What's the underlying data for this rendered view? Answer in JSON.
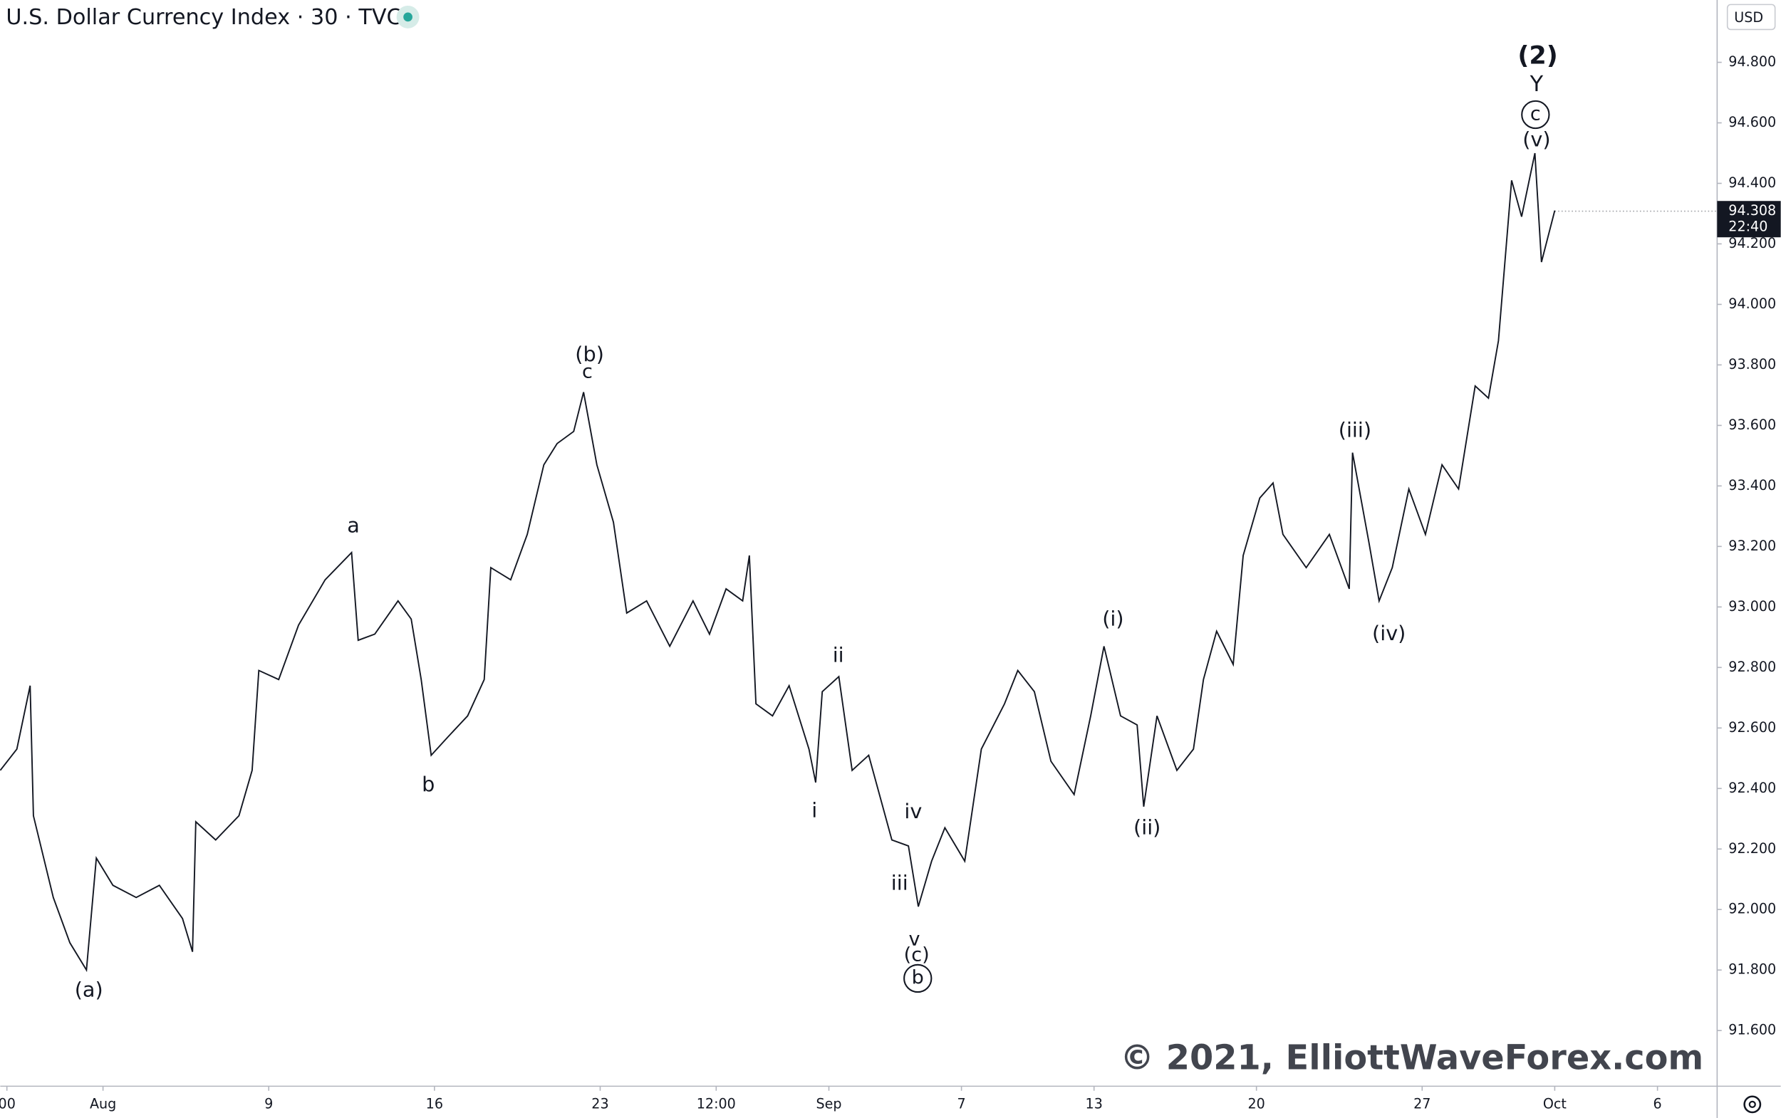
{
  "chart_data": {
    "type": "line",
    "title": "U.S. Dollar Currency Index · 30 · TVC",
    "currency": "USD",
    "watermark": "© 2021, ElliottWaveForex.com",
    "last_price": {
      "value": 94.308,
      "time": "22:40"
    },
    "color": "#131722",
    "x": [
      -3.1,
      -2.6,
      -2.2,
      -2.1,
      -1.5,
      -1.0,
      -0.5,
      -0.2,
      0.3,
      1.0,
      1.7,
      2.4,
      2.7,
      2.8,
      3.4,
      4.1,
      4.5,
      4.7,
      5.3,
      5.9,
      6.7,
      7.5,
      7.7,
      8.2,
      8.9,
      9.3,
      9.6,
      9.9,
      10.4,
      11.0,
      11.5,
      11.7,
      12.3,
      12.8,
      13.3,
      13.7,
      14.2,
      14.5,
      14.9,
      15.4,
      15.8,
      16.4,
      17.1,
      17.8,
      18.3,
      18.8,
      19.3,
      19.5,
      19.7,
      20.2,
      20.7,
      21.3,
      21.5,
      21.7,
      22.2,
      22.6,
      23.1,
      23.8,
      24.3,
      24.6,
      25.0,
      25.4,
      26.0,
      26.5,
      27.2,
      27.6,
      28.1,
      28.6,
      29.3,
      29.8,
      30.2,
      30.7,
      31.2,
      31.4,
      31.8,
      32.4,
      32.9,
      33.2,
      33.6,
      34.1,
      34.4,
      34.9,
      35.3,
      35.6,
      36.3,
      37.0,
      37.6,
      37.7,
      38.2,
      38.5,
      38.9,
      39.4,
      39.9,
      40.4,
      40.9,
      41.4,
      41.8,
      42.1,
      42.5,
      42.8,
      43.2,
      43.4,
      43.8
    ],
    "values": [
      92.46,
      92.53,
      92.74,
      92.31,
      92.04,
      91.89,
      91.8,
      92.17,
      92.08,
      92.04,
      92.08,
      91.97,
      91.86,
      92.29,
      92.23,
      92.31,
      92.46,
      92.79,
      92.76,
      92.94,
      93.09,
      93.18,
      92.89,
      92.91,
      93.02,
      92.96,
      92.76,
      92.51,
      92.57,
      92.64,
      92.76,
      93.13,
      93.09,
      93.24,
      93.47,
      93.54,
      93.58,
      93.71,
      93.47,
      93.28,
      92.98,
      93.02,
      92.87,
      93.02,
      92.91,
      93.06,
      93.02,
      93.17,
      92.68,
      92.64,
      92.74,
      92.53,
      92.42,
      92.72,
      92.77,
      92.46,
      92.51,
      92.23,
      92.21,
      92.01,
      92.16,
      92.27,
      92.16,
      92.53,
      92.68,
      92.79,
      92.72,
      92.49,
      92.38,
      92.64,
      92.87,
      92.64,
      92.61,
      92.34,
      92.64,
      92.46,
      92.53,
      92.76,
      92.92,
      92.81,
      93.17,
      93.36,
      93.41,
      93.24,
      93.13,
      93.24,
      93.06,
      93.51,
      93.21,
      93.02,
      93.13,
      93.39,
      93.24,
      93.47,
      93.39,
      93.73,
      93.69,
      93.88,
      94.41,
      94.29,
      94.5,
      94.14,
      94.31
    ],
    "xlim": [
      -3.1,
      48.7
    ],
    "ylim": [
      91.416,
      95.006
    ],
    "xticks": [
      {
        "value": -2.9,
        "label": "00"
      },
      {
        "value": 0,
        "label": "Aug"
      },
      {
        "value": 5,
        "label": "9"
      },
      {
        "value": 10,
        "label": "16"
      },
      {
        "value": 15,
        "label": "23"
      },
      {
        "value": 18.5,
        "label": "12:00"
      },
      {
        "value": 21.9,
        "label": "Sep"
      },
      {
        "value": 25.9,
        "label": "7"
      },
      {
        "value": 29.9,
        "label": "13"
      },
      {
        "value": 34.8,
        "label": "20"
      },
      {
        "value": 39.8,
        "label": "27"
      },
      {
        "value": 43.8,
        "label": "Oct"
      },
      {
        "value": 46.9,
        "label": "6"
      }
    ],
    "yticks": [
      {
        "value": 91.6,
        "label": "91.600"
      },
      {
        "value": 91.8,
        "label": "91.800"
      },
      {
        "value": 92.0,
        "label": "92.000"
      },
      {
        "value": 92.2,
        "label": "92.200"
      },
      {
        "value": 92.4,
        "label": "92.400"
      },
      {
        "value": 92.6,
        "label": "92.600"
      },
      {
        "value": 92.8,
        "label": "92.800"
      },
      {
        "value": 93.0,
        "label": "93.000"
      },
      {
        "value": 93.2,
        "label": "93.200"
      },
      {
        "value": 93.4,
        "label": "93.400"
      },
      {
        "value": 93.6,
        "label": "93.600"
      },
      {
        "value": 93.8,
        "label": "93.800"
      },
      {
        "value": 94.0,
        "label": "94.000"
      },
      {
        "value": 94.2,
        "label": "94.200"
      },
      {
        "value": 94.4,
        "label": "94.400"
      },
      {
        "value": 94.6,
        "label": "94.600"
      },
      {
        "value": 94.8,
        "label": "94.800"
      }
    ],
    "annotations": [
      "(2)",
      "Y",
      "c",
      "(v)",
      "(b)",
      "c",
      "a",
      "b",
      "(a)",
      "ii",
      "i",
      "iv",
      "iii",
      "v",
      "(c)",
      "b",
      "(i)",
      "(ii)",
      "(iii)",
      "(iv)"
    ]
  }
}
